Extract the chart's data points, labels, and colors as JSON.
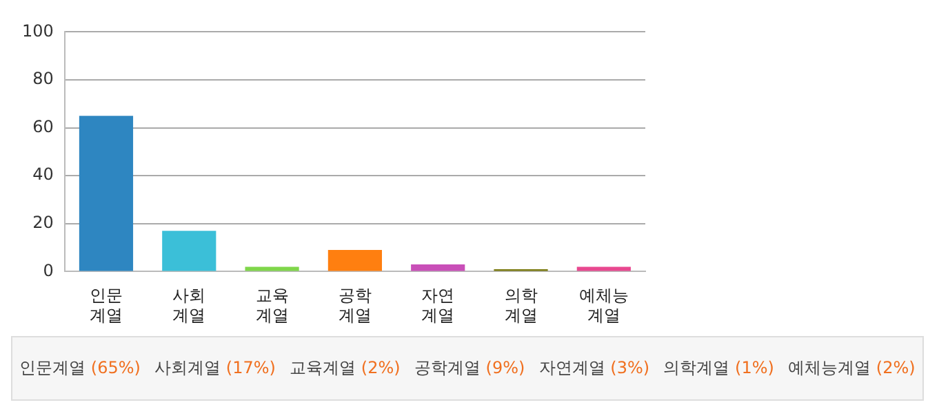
{
  "chart_data": {
    "type": "bar",
    "categories": [
      "인문계열",
      "사회계열",
      "교육계열",
      "공학계열",
      "자연계열",
      "의학계열",
      "예체능계열"
    ],
    "values": [
      65,
      17,
      2,
      9,
      3,
      1,
      2
    ],
    "colors": [
      "#2e86c1",
      "#3bbfd8",
      "#7fd64a",
      "#ff7f10",
      "#c94fb8",
      "#7a7a10",
      "#e8488f"
    ],
    "annotations": [
      "인문계열 (65%)",
      "사회계열 (17%)",
      "교육계열 (2%)",
      "공학계열 (9%)",
      "자연계열 (3%)",
      "의학계열 (1%)",
      "예체능계열 (2%)"
    ],
    "ylim": [
      0,
      100
    ],
    "yticks": [
      0,
      20,
      40,
      60,
      80,
      100
    ],
    "grid": "y",
    "legend": false
  }
}
